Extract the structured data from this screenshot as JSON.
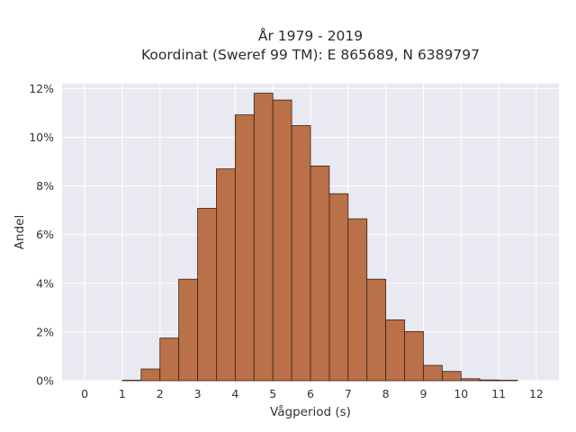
{
  "chart_data": {
    "type": "bar",
    "title_lines": [
      "År 1979 - 2019",
      "Koordinat (Sweref 99 TM): E 865689, N 6389797"
    ],
    "xlabel": "Vågperiod (s)",
    "ylabel": "Andel",
    "xlim": [
      -0.6,
      12.6
    ],
    "ylim": [
      0,
      0.122
    ],
    "x_ticks": [
      0,
      1,
      2,
      3,
      4,
      5,
      6,
      7,
      8,
      9,
      10,
      11,
      12
    ],
    "x_tick_labels": [
      "0",
      "1",
      "2",
      "3",
      "4",
      "5",
      "6",
      "7",
      "8",
      "9",
      "10",
      "11",
      "12"
    ],
    "y_ticks": [
      0,
      0.02,
      0.04,
      0.06,
      0.08,
      0.1,
      0.12
    ],
    "y_tick_labels": [
      "0%",
      "2%",
      "4%",
      "6%",
      "8%",
      "10%",
      "12%"
    ],
    "bin_width": 0.5,
    "bins": [
      {
        "x0": 1.0,
        "value": 0.0002
      },
      {
        "x0": 1.5,
        "value": 0.0048
      },
      {
        "x0": 2.0,
        "value": 0.0175
      },
      {
        "x0": 2.5,
        "value": 0.0417
      },
      {
        "x0": 3.0,
        "value": 0.0708
      },
      {
        "x0": 3.5,
        "value": 0.087
      },
      {
        "x0": 4.0,
        "value": 0.1092
      },
      {
        "x0": 4.5,
        "value": 0.1181
      },
      {
        "x0": 5.0,
        "value": 0.1153
      },
      {
        "x0": 5.5,
        "value": 0.1048
      },
      {
        "x0": 6.0,
        "value": 0.0882
      },
      {
        "x0": 6.5,
        "value": 0.0768
      },
      {
        "x0": 7.0,
        "value": 0.0665
      },
      {
        "x0": 7.5,
        "value": 0.0417
      },
      {
        "x0": 8.0,
        "value": 0.025
      },
      {
        "x0": 8.5,
        "value": 0.0202
      },
      {
        "x0": 9.0,
        "value": 0.0063
      },
      {
        "x0": 9.5,
        "value": 0.0038
      },
      {
        "x0": 10.0,
        "value": 0.0008
      },
      {
        "x0": 10.5,
        "value": 0.0003
      },
      {
        "x0": 11.0,
        "value": 0.0002
      }
    ],
    "grid": true,
    "colors": {
      "bar_fill": "#b5653a",
      "bar_edge": "#3a2418",
      "plot_background": "#e9e9f1",
      "grid": "#ffffff"
    }
  }
}
